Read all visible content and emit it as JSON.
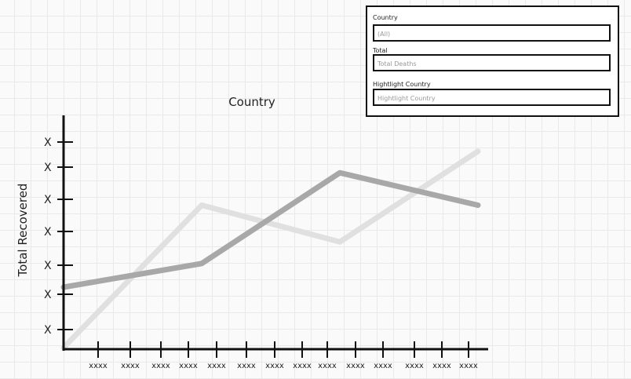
{
  "filters": {
    "country_label": "Country",
    "country_value": "(All)",
    "total_label": "Total",
    "total_value": "Total Deaths",
    "highlight_label": "Hightlight Country",
    "highlight_placeholder": "Hightlight Country"
  },
  "chart_data": {
    "type": "line",
    "title": "Country",
    "xlabel": "",
    "ylabel": "Total Recovered",
    "y_tick_labels": [
      "X",
      "X",
      "X",
      "X",
      "X",
      "X",
      "X"
    ],
    "x_tick_labels": [
      "xxxx",
      "xxxx",
      "xxxx",
      "xxxx",
      "xxxx",
      "xxxx",
      "xxxx",
      "xxxx",
      "xxxx",
      "xxxx",
      "xxxx",
      "xxxx",
      "xxxx",
      "xxxx"
    ],
    "x": [
      0,
      1,
      2,
      3
    ],
    "series": [
      {
        "color": "#e0e0e0",
        "values": [
          0,
          66,
          49,
          91
        ]
      },
      {
        "color": "#a8a8a8",
        "values": [
          28,
          39,
          81,
          66
        ]
      }
    ]
  }
}
